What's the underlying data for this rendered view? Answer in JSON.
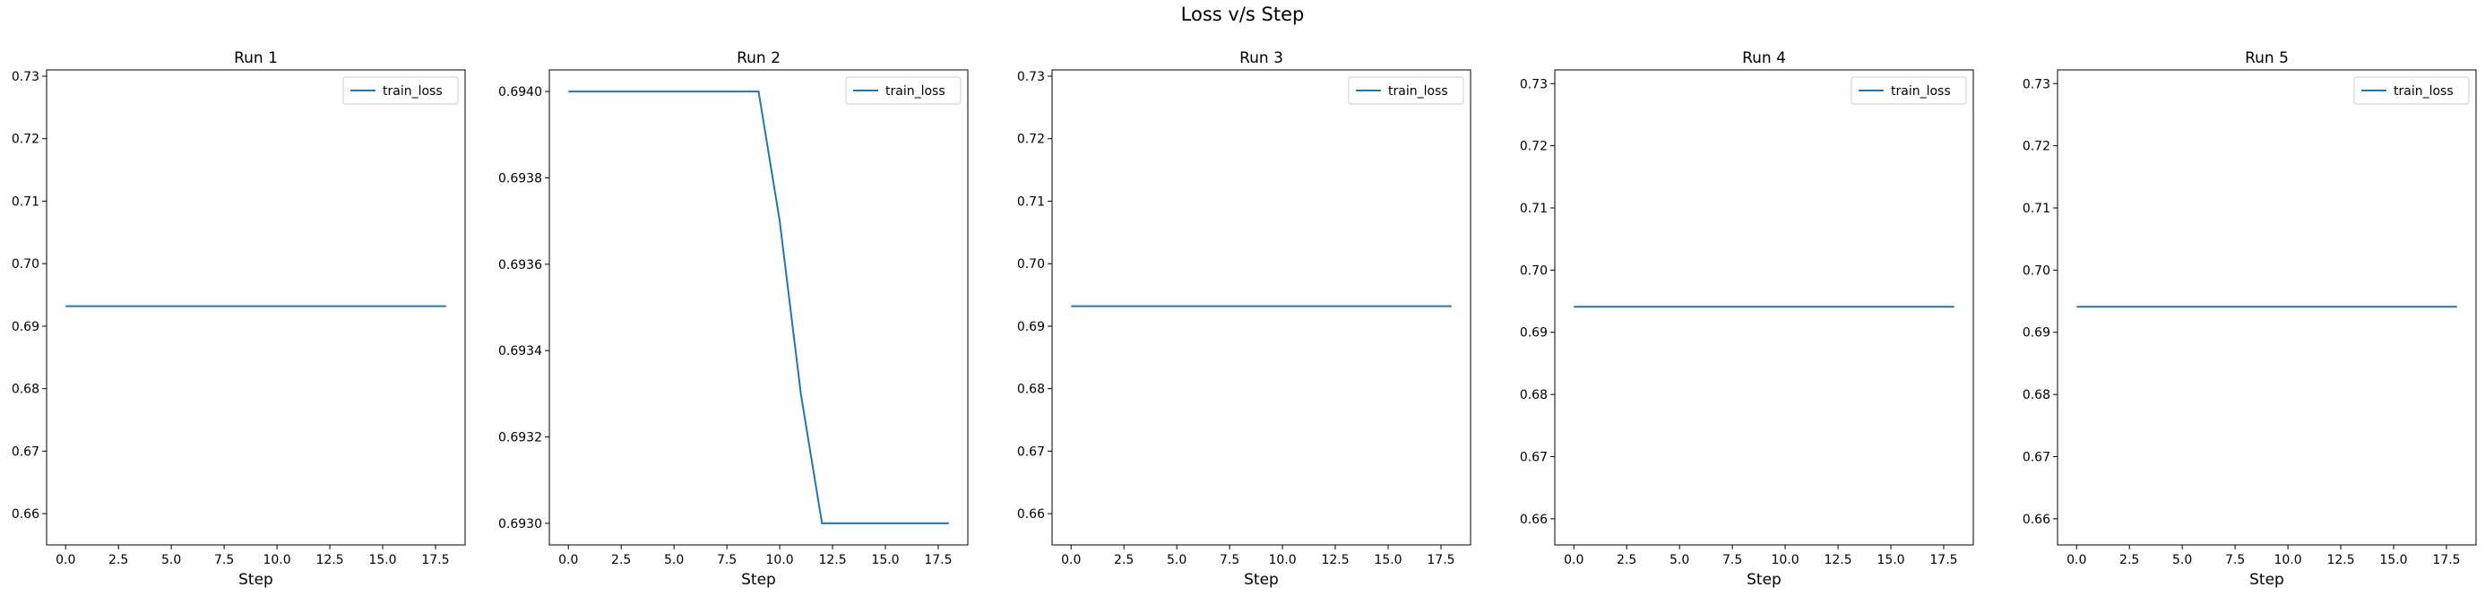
{
  "figure": {
    "title": "Loss v/s Step"
  },
  "colors": {
    "series": "#1f77b4",
    "axes": "#000000",
    "legend_border": "#cccccc"
  },
  "chart_data": [
    {
      "type": "line",
      "title": "Run 1",
      "xlabel": "Step",
      "ylabel": "",
      "xlim": [
        -0.9,
        18.9
      ],
      "ylim": [
        0.655,
        0.731
      ],
      "xticks": [
        "0.0",
        "2.5",
        "5.0",
        "7.5",
        "10.0",
        "12.5",
        "15.0",
        "17.5"
      ],
      "yticks": [
        "0.66",
        "0.67",
        "0.68",
        "0.69",
        "0.70",
        "0.71",
        "0.72",
        "0.73"
      ],
      "legend": "upper right",
      "series": [
        {
          "name": "train_loss",
          "x": [
            0,
            1,
            2,
            3,
            4,
            5,
            6,
            7,
            8,
            9,
            10,
            11,
            12,
            13,
            14,
            15,
            16,
            17,
            18
          ],
          "y": [
            0.6932,
            0.6932,
            0.6932,
            0.6932,
            0.6932,
            0.6932,
            0.6932,
            0.6932,
            0.6932,
            0.6932,
            0.6932,
            0.6932,
            0.6932,
            0.6932,
            0.6932,
            0.6932,
            0.6932,
            0.6932,
            0.6932
          ]
        }
      ]
    },
    {
      "type": "line",
      "title": "Run 2",
      "xlabel": "Step",
      "ylabel": "",
      "xlim": [
        -0.9,
        18.9
      ],
      "ylim": [
        0.69295,
        0.69405
      ],
      "xticks": [
        "0.0",
        "2.5",
        "5.0",
        "7.5",
        "10.0",
        "12.5",
        "15.0",
        "17.5"
      ],
      "yticks": [
        "0.6930",
        "0.6932",
        "0.6934",
        "0.6936",
        "0.6938",
        "0.6940"
      ],
      "legend": "upper right",
      "series": [
        {
          "name": "train_loss",
          "x": [
            0,
            1,
            2,
            3,
            4,
            5,
            6,
            7,
            8,
            9,
            10,
            11,
            12,
            13,
            14,
            15,
            16,
            17,
            18
          ],
          "y": [
            0.694,
            0.694,
            0.694,
            0.694,
            0.694,
            0.694,
            0.694,
            0.694,
            0.694,
            0.694,
            0.6937,
            0.6933,
            0.693,
            0.693,
            0.693,
            0.693,
            0.693,
            0.693,
            0.693
          ]
        }
      ]
    },
    {
      "type": "line",
      "title": "Run 3",
      "xlabel": "Step",
      "ylabel": "",
      "xlim": [
        -0.9,
        18.9
      ],
      "ylim": [
        0.655,
        0.731
      ],
      "xticks": [
        "0.0",
        "2.5",
        "5.0",
        "7.5",
        "10.0",
        "12.5",
        "15.0",
        "17.5"
      ],
      "yticks": [
        "0.66",
        "0.67",
        "0.68",
        "0.69",
        "0.70",
        "0.71",
        "0.72",
        "0.73"
      ],
      "legend": "upper right",
      "series": [
        {
          "name": "train_loss",
          "x": [
            0,
            1,
            2,
            3,
            4,
            5,
            6,
            7,
            8,
            9,
            10,
            11,
            12,
            13,
            14,
            15,
            16,
            17,
            18
          ],
          "y": [
            0.6932,
            0.6932,
            0.6932,
            0.6932,
            0.6932,
            0.6932,
            0.6932,
            0.6932,
            0.6932,
            0.6932,
            0.6932,
            0.6932,
            0.6932,
            0.6932,
            0.6932,
            0.6932,
            0.6932,
            0.6932,
            0.6932
          ]
        }
      ]
    },
    {
      "type": "line",
      "title": "Run 4",
      "xlabel": "Step",
      "ylabel": "",
      "xlim": [
        -0.9,
        18.9
      ],
      "ylim": [
        0.6558,
        0.7322
      ],
      "xticks": [
        "0.0",
        "2.5",
        "5.0",
        "7.5",
        "10.0",
        "12.5",
        "15.0",
        "17.5"
      ],
      "yticks": [
        "0.66",
        "0.67",
        "0.68",
        "0.69",
        "0.70",
        "0.71",
        "0.72",
        "0.73"
      ],
      "legend": "upper right",
      "series": [
        {
          "name": "train_loss",
          "x": [
            0,
            1,
            2,
            3,
            4,
            5,
            6,
            7,
            8,
            9,
            10,
            11,
            12,
            13,
            14,
            15,
            16,
            17,
            18
          ],
          "y": [
            0.6941,
            0.6941,
            0.6941,
            0.6941,
            0.6941,
            0.6941,
            0.6941,
            0.6941,
            0.6941,
            0.6941,
            0.6941,
            0.6941,
            0.6941,
            0.6941,
            0.6941,
            0.6941,
            0.6941,
            0.6941,
            0.6941
          ]
        }
      ]
    },
    {
      "type": "line",
      "title": "Run 5",
      "xlabel": "Step",
      "ylabel": "",
      "xlim": [
        -0.9,
        18.9
      ],
      "ylim": [
        0.6558,
        0.7322
      ],
      "xticks": [
        "0.0",
        "2.5",
        "5.0",
        "7.5",
        "10.0",
        "12.5",
        "15.0",
        "17.5"
      ],
      "yticks": [
        "0.66",
        "0.67",
        "0.68",
        "0.69",
        "0.70",
        "0.71",
        "0.72",
        "0.73"
      ],
      "legend": "upper right",
      "series": [
        {
          "name": "train_loss",
          "x": [
            0,
            1,
            2,
            3,
            4,
            5,
            6,
            7,
            8,
            9,
            10,
            11,
            12,
            13,
            14,
            15,
            16,
            17,
            18
          ],
          "y": [
            0.6941,
            0.6941,
            0.6941,
            0.6941,
            0.6941,
            0.6941,
            0.6941,
            0.6941,
            0.6941,
            0.6941,
            0.6941,
            0.6941,
            0.6941,
            0.6941,
            0.6941,
            0.6941,
            0.6941,
            0.6941,
            0.6941
          ]
        }
      ]
    }
  ]
}
